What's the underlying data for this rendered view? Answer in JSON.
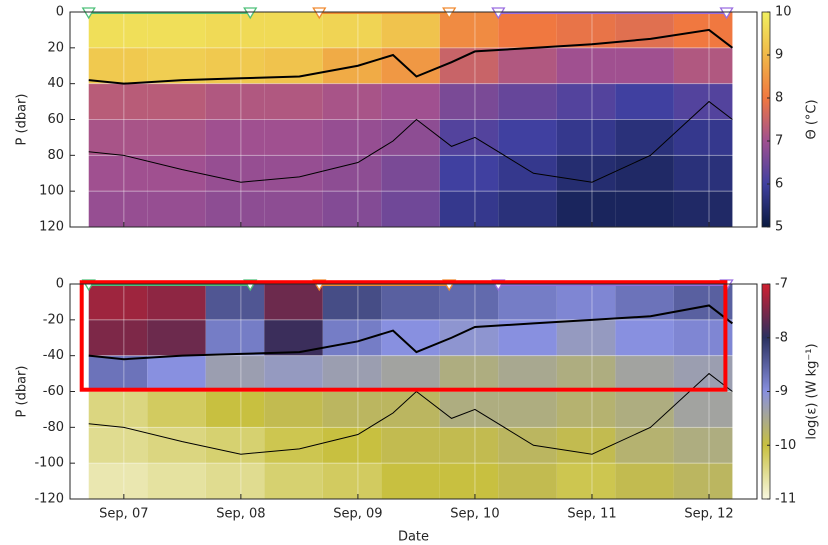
{
  "chart_data": [
    {
      "type": "heatmap",
      "ylabel": "P (dbar)",
      "clabel": "Θ (°C)",
      "xlim": [
        6.54,
        12.41
      ],
      "xticks": [
        7,
        8,
        9,
        10,
        11,
        12
      ],
      "ylim": [
        0,
        120
      ],
      "y_reversed": true,
      "yticks": [
        0,
        20,
        40,
        60,
        80,
        100,
        120
      ],
      "grid": true,
      "xbins": [
        6.7,
        7.2,
        7.7,
        8.2,
        8.7,
        9.2,
        9.7,
        10.2,
        10.7,
        11.2,
        11.7,
        12.2
      ],
      "ybins": [
        0,
        20,
        40,
        60,
        80,
        100,
        120
      ],
      "z": [
        [
          9.7,
          9.7,
          9.6,
          9.6,
          9.5,
          9.2,
          8.3,
          8.0,
          7.9,
          7.8,
          8.0
        ],
        [
          9.3,
          9.4,
          9.3,
          9.2,
          8.8,
          8.5,
          7.5,
          7.2,
          7.0,
          7.0,
          7.2
        ],
        [
          7.3,
          7.3,
          7.2,
          7.2,
          7.1,
          7.0,
          6.6,
          6.4,
          6.2,
          6.0,
          6.2
        ],
        [
          7.1,
          7.1,
          7.0,
          7.0,
          6.9,
          6.8,
          6.2,
          6.0,
          5.8,
          5.6,
          5.8
        ],
        [
          7.0,
          7.0,
          6.9,
          6.9,
          6.8,
          6.6,
          6.0,
          5.8,
          5.5,
          5.4,
          5.6
        ],
        [
          6.9,
          6.9,
          6.8,
          6.8,
          6.7,
          6.5,
          5.8,
          5.6,
          5.3,
          5.3,
          5.4
        ]
      ],
      "clim": [
        5,
        10
      ],
      "cticks": [
        5,
        6,
        7,
        8,
        9,
        10
      ],
      "colormap": [
        {
          "value": 5,
          "color": "#0a1a40"
        },
        {
          "value": 6,
          "color": "#4040a0"
        },
        {
          "value": 7,
          "color": "#a05090"
        },
        {
          "value": 8,
          "color": "#f07840"
        },
        {
          "value": 9,
          "color": "#f0b848"
        },
        {
          "value": 10,
          "color": "#f0f060"
        }
      ],
      "series": [
        {
          "color": "#000000",
          "x": [
            6.7,
            7,
            7.5,
            8,
            8.5,
            9,
            9.3,
            9.5,
            9.8,
            10,
            10.5,
            11,
            11.5,
            12,
            12.2
          ],
          "values": [
            38,
            40,
            38,
            37,
            36,
            30,
            24,
            36,
            28,
            22,
            20,
            18,
            15,
            10,
            20
          ]
        },
        {
          "color": "#000000",
          "x": [
            6.7,
            7,
            7.5,
            8,
            8.5,
            9,
            9.3,
            9.5,
            9.8,
            10,
            10.5,
            11,
            11.5,
            12,
            12.2
          ],
          "values": [
            78,
            80,
            88,
            95,
            92,
            84,
            72,
            60,
            75,
            70,
            90,
            95,
            80,
            50,
            60
          ]
        }
      ],
      "markers": [
        {
          "x": 6.7,
          "color": "#4fc07a"
        },
        {
          "x": 8.08,
          "color": "#4fc07a"
        },
        {
          "x": 8.67,
          "color": "#f08a30"
        },
        {
          "x": 9.78,
          "color": "#f08a30"
        },
        {
          "x": 10.2,
          "color": "#9a6ee0"
        },
        {
          "x": 12.15,
          "color": "#9a6ee0"
        }
      ]
    },
    {
      "type": "heatmap",
      "ylabel": "P (dbar)",
      "xlabel": "Date",
      "clabel": "log(ε) (W kg⁻¹)",
      "xlim": [
        6.54,
        12.41
      ],
      "xticks": [
        {
          "value": 7,
          "label": "Sep, 07"
        },
        {
          "value": 8,
          "label": "Sep, 08"
        },
        {
          "value": 9,
          "label": "Sep, 09"
        },
        {
          "value": 10,
          "label": "Sep, 10"
        },
        {
          "value": 11,
          "label": "Sep, 11"
        },
        {
          "value": 12,
          "label": "Sep, 12"
        }
      ],
      "ylim": [
        -120,
        0
      ],
      "yticks": [
        0,
        -20,
        -40,
        -60,
        -80,
        -100,
        -120
      ],
      "grid": true,
      "xbins": [
        6.7,
        7.2,
        7.7,
        8.2,
        8.7,
        9.2,
        9.7,
        10.2,
        10.7,
        11.2,
        11.7,
        12.2
      ],
      "ybins": [
        0,
        -20,
        -40,
        -60,
        -80,
        -100,
        -120
      ],
      "z": [
        [
          -7.3,
          -7.4,
          -8.4,
          -7.6,
          -8.3,
          -8.5,
          -8.6,
          -8.8,
          -8.9,
          -8.7,
          -8.5
        ],
        [
          -7.5,
          -7.6,
          -8.8,
          -7.9,
          -8.8,
          -9.0,
          -9.1,
          -9.0,
          -9.2,
          -9.0,
          -8.9
        ],
        [
          -8.7,
          -9.0,
          -9.3,
          -9.2,
          -9.3,
          -9.4,
          -9.6,
          -9.5,
          -9.6,
          -9.4,
          -9.3
        ],
        [
          -10.4,
          -10.2,
          -10.0,
          -9.9,
          -9.8,
          -9.8,
          -9.6,
          -9.6,
          -9.7,
          -9.6,
          -9.4
        ],
        [
          -10.5,
          -10.4,
          -10.3,
          -10.1,
          -10.0,
          -9.9,
          -9.9,
          -9.8,
          -9.9,
          -9.7,
          -9.6
        ],
        [
          -10.7,
          -10.6,
          -10.5,
          -10.3,
          -10.2,
          -10.0,
          -10.0,
          -9.9,
          -10.1,
          -9.9,
          -9.8
        ]
      ],
      "clim": [
        -11,
        -7
      ],
      "cticks": [
        -7,
        -8,
        -9,
        -10,
        -11
      ],
      "colormap": [
        {
          "value": -11,
          "color": "#f8f8e0"
        },
        {
          "value": -10,
          "color": "#c8c040"
        },
        {
          "value": -9,
          "color": "#8890e0"
        },
        {
          "value": -8,
          "color": "#2a3060"
        },
        {
          "value": -7,
          "color": "#d02030"
        }
      ],
      "series": [
        {
          "color": "#000000",
          "x": [
            6.7,
            7,
            7.5,
            8,
            8.5,
            9,
            9.3,
            9.5,
            9.8,
            10,
            10.5,
            11,
            11.5,
            12,
            12.2
          ],
          "values": [
            -40,
            -42,
            -40,
            -39,
            -38,
            -32,
            -26,
            -38,
            -30,
            -24,
            -22,
            -20,
            -18,
            -12,
            -22
          ]
        },
        {
          "color": "#000000",
          "x": [
            6.7,
            7,
            7.5,
            8,
            8.5,
            9,
            9.3,
            9.5,
            9.8,
            10,
            10.5,
            11,
            11.5,
            12,
            12.2
          ],
          "values": [
            -78,
            -80,
            -88,
            -95,
            -92,
            -84,
            -72,
            -60,
            -75,
            -70,
            -90,
            -95,
            -80,
            -50,
            -60
          ]
        }
      ],
      "markers": [
        {
          "x": 6.7,
          "color": "#4fc07a"
        },
        {
          "x": 8.08,
          "color": "#4fc07a"
        },
        {
          "x": 8.67,
          "color": "#f08a30"
        },
        {
          "x": 9.78,
          "color": "#f08a30"
        },
        {
          "x": 10.2,
          "color": "#9a6ee0"
        },
        {
          "x": 12.15,
          "color": "#9a6ee0"
        }
      ],
      "highlight": {
        "x": [
          6.64,
          12.14
        ],
        "y": [
          1,
          -59
        ],
        "color": "#ff0000"
      }
    }
  ]
}
